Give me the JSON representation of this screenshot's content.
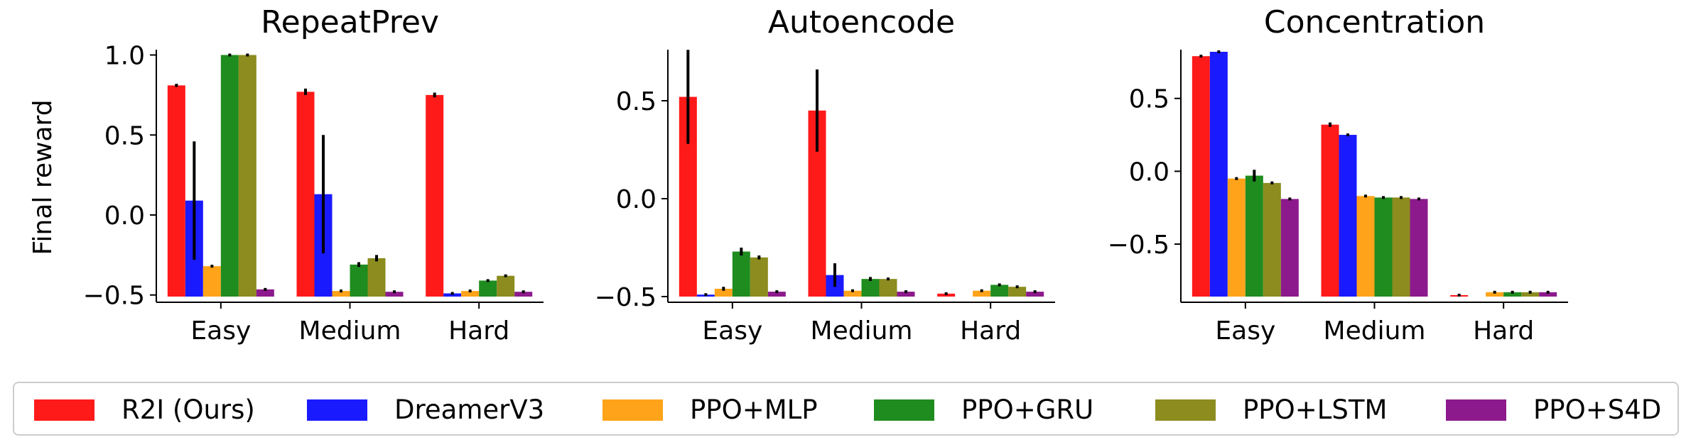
{
  "legend": [
    {
      "name": "R2I (Ours)",
      "color": "#ff1a1a"
    },
    {
      "name": "DreamerV3",
      "color": "#1a1aff"
    },
    {
      "name": "PPO+MLP",
      "color": "#ffa31a"
    },
    {
      "name": "PPO+GRU",
      "color": "#1f8c1f"
    },
    {
      "name": "PPO+LSTM",
      "color": "#8c8c1f"
    },
    {
      "name": "PPO+S4D",
      "color": "#8c1a8c"
    }
  ],
  "chart_data": [
    {
      "type": "bar",
      "title": "RepeatPrev",
      "ylabel": "Final reward",
      "categories": [
        "Easy",
        "Medium",
        "Hard"
      ],
      "ylim": [
        -0.51,
        1.02
      ],
      "yticks": [
        -0.5,
        0.0,
        0.5,
        1.0
      ],
      "ytick_labels": [
        "−0.5",
        "0.0",
        "0.5",
        "1.0"
      ],
      "series": [
        {
          "name": "R2I (Ours)",
          "values": [
            0.81,
            0.77,
            0.75
          ],
          "err": [
            0.01,
            0.02,
            0.015
          ]
        },
        {
          "name": "DreamerV3",
          "values": [
            0.09,
            0.13,
            -0.49
          ],
          "err": [
            0.37,
            0.37,
            0.0
          ]
        },
        {
          "name": "PPO+MLP",
          "values": [
            -0.32,
            -0.475,
            -0.475
          ],
          "err": [
            0.005,
            0.003,
            0.003
          ]
        },
        {
          "name": "PPO+GRU",
          "values": [
            1.0,
            -0.31,
            -0.41
          ],
          "err": [
            0.0,
            0.015,
            0.005
          ]
        },
        {
          "name": "PPO+LSTM",
          "values": [
            1.0,
            -0.27,
            -0.38
          ],
          "err": [
            0.005,
            0.02,
            0.005
          ]
        },
        {
          "name": "PPO+S4D",
          "values": [
            -0.465,
            -0.48,
            -0.48
          ],
          "err": [
            0.003,
            0.003,
            0.003
          ]
        }
      ]
    },
    {
      "type": "bar",
      "title": "Autoencode",
      "ylabel": "",
      "categories": [
        "Easy",
        "Medium",
        "Hard"
      ],
      "ylim": [
        -0.5,
        0.75
      ],
      "yticks": [
        -0.5,
        0.0,
        0.5
      ],
      "ytick_labels": [
        "−0.5",
        "0.0",
        "0.5"
      ],
      "series": [
        {
          "name": "R2I (Ours)",
          "values": [
            0.52,
            0.45,
            -0.485
          ],
          "err": [
            0.24,
            0.21,
            0.005
          ]
        },
        {
          "name": "DreamerV3",
          "values": [
            -0.49,
            -0.39,
            null
          ],
          "err": [
            0.0,
            0.06,
            0.0
          ]
        },
        {
          "name": "PPO+MLP",
          "values": [
            -0.46,
            -0.47,
            -0.47
          ],
          "err": [
            0.01,
            0.005,
            0.005
          ]
        },
        {
          "name": "PPO+GRU",
          "values": [
            -0.27,
            -0.41,
            -0.44
          ],
          "err": [
            0.02,
            0.01,
            0.005
          ]
        },
        {
          "name": "PPO+LSTM",
          "values": [
            -0.3,
            -0.41,
            -0.45
          ],
          "err": [
            0.01,
            0.005,
            0.005
          ]
        },
        {
          "name": "PPO+S4D",
          "values": [
            -0.475,
            -0.475,
            -0.475
          ],
          "err": [
            0.005,
            0.005,
            0.005
          ]
        }
      ]
    },
    {
      "type": "bar",
      "title": "Concentration",
      "ylabel": "",
      "categories": [
        "Easy",
        "Medium",
        "Hard"
      ],
      "ylim": [
        -0.86,
        0.82
      ],
      "yticks": [
        -0.5,
        0.0,
        0.5
      ],
      "ytick_labels": [
        "−0.5",
        "0.0",
        "0.5"
      ],
      "series": [
        {
          "name": "R2I (Ours)",
          "values": [
            0.79,
            0.32,
            -0.85
          ],
          "err": [
            0.005,
            0.015,
            0.003
          ]
        },
        {
          "name": "DreamerV3",
          "values": [
            0.82,
            0.25,
            null
          ],
          "err": [
            0.0,
            0.0,
            0.0
          ]
        },
        {
          "name": "PPO+MLP",
          "values": [
            -0.05,
            -0.17,
            -0.83
          ],
          "err": [
            0.01,
            0.005,
            0.005
          ]
        },
        {
          "name": "PPO+GRU",
          "values": [
            -0.03,
            -0.18,
            -0.83
          ],
          "err": [
            0.04,
            0.005,
            0.005
          ]
        },
        {
          "name": "PPO+LSTM",
          "values": [
            -0.08,
            -0.18,
            -0.83
          ],
          "err": [
            0.01,
            0.005,
            0.005
          ]
        },
        {
          "name": "PPO+S4D",
          "values": [
            -0.19,
            -0.19,
            -0.83
          ],
          "err": [
            0.005,
            0.005,
            0.005
          ]
        }
      ]
    }
  ]
}
